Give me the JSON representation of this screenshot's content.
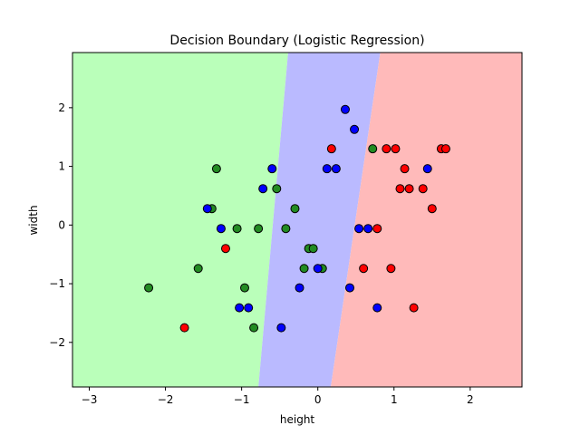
{
  "chart_data": {
    "type": "scatter",
    "title": "Decision Boundary (Logistic Regression)",
    "xlabel": "height",
    "ylabel": "width",
    "xlim": [
      -3.22,
      2.68
    ],
    "ylim": [
      -2.76,
      2.94
    ],
    "xticks": [
      -3,
      -2,
      -1,
      0,
      1,
      2
    ],
    "yticks": [
      -2,
      -1,
      0,
      1,
      2
    ],
    "grid": false,
    "legend": "none",
    "regions": [
      {
        "class": "green",
        "color": "#baffba",
        "boundary_bottom_x": -0.78,
        "boundary_top_x": -0.39
      },
      {
        "class": "blue",
        "color": "#babaff",
        "boundary_bottom_x": 0.17,
        "boundary_top_x": 0.82
      },
      {
        "class": "red",
        "color": "#ffbaba"
      }
    ],
    "point_colors": {
      "red": "#ff0000",
      "green": "#228b22",
      "blue": "#0000ff"
    },
    "points": [
      {
        "x": -2.22,
        "y": -1.07,
        "c": "green"
      },
      {
        "x": -1.57,
        "y": -0.74,
        "c": "green"
      },
      {
        "x": -1.39,
        "y": 0.28,
        "c": "green"
      },
      {
        "x": -1.33,
        "y": 0.96,
        "c": "green"
      },
      {
        "x": -1.06,
        "y": -0.06,
        "c": "green"
      },
      {
        "x": -0.96,
        "y": -1.07,
        "c": "green"
      },
      {
        "x": -0.84,
        "y": -1.75,
        "c": "green"
      },
      {
        "x": -0.78,
        "y": -0.06,
        "c": "green"
      },
      {
        "x": -0.54,
        "y": 0.62,
        "c": "green"
      },
      {
        "x": -0.42,
        "y": -0.06,
        "c": "green"
      },
      {
        "x": -0.3,
        "y": 0.28,
        "c": "green"
      },
      {
        "x": -0.18,
        "y": -0.74,
        "c": "green"
      },
      {
        "x": -0.12,
        "y": -0.4,
        "c": "green"
      },
      {
        "x": -0.06,
        "y": -0.4,
        "c": "green"
      },
      {
        "x": 0.06,
        "y": -0.74,
        "c": "green"
      },
      {
        "x": 0.72,
        "y": 1.3,
        "c": "green"
      },
      {
        "x": -1.45,
        "y": 0.28,
        "c": "blue"
      },
      {
        "x": -1.27,
        "y": -0.06,
        "c": "blue"
      },
      {
        "x": -1.03,
        "y": -1.41,
        "c": "blue"
      },
      {
        "x": -0.91,
        "y": -1.41,
        "c": "blue"
      },
      {
        "x": -0.72,
        "y": 0.62,
        "c": "blue"
      },
      {
        "x": -0.6,
        "y": 0.96,
        "c": "blue"
      },
      {
        "x": -0.48,
        "y": -1.75,
        "c": "blue"
      },
      {
        "x": -0.24,
        "y": -1.07,
        "c": "blue"
      },
      {
        "x": 0.0,
        "y": -0.74,
        "c": "blue"
      },
      {
        "x": 0.12,
        "y": 0.96,
        "c": "blue"
      },
      {
        "x": 0.24,
        "y": 0.96,
        "c": "blue"
      },
      {
        "x": 0.36,
        "y": 1.97,
        "c": "blue"
      },
      {
        "x": 0.42,
        "y": -1.07,
        "c": "blue"
      },
      {
        "x": 0.48,
        "y": 1.63,
        "c": "blue"
      },
      {
        "x": 0.54,
        "y": -0.06,
        "c": "blue"
      },
      {
        "x": 0.66,
        "y": -0.06,
        "c": "blue"
      },
      {
        "x": 0.78,
        "y": -1.41,
        "c": "blue"
      },
      {
        "x": 1.44,
        "y": 0.96,
        "c": "blue"
      },
      {
        "x": -1.75,
        "y": -1.75,
        "c": "red"
      },
      {
        "x": -1.21,
        "y": -0.4,
        "c": "red"
      },
      {
        "x": 0.18,
        "y": 1.3,
        "c": "red"
      },
      {
        "x": 0.6,
        "y": -0.74,
        "c": "red"
      },
      {
        "x": 0.78,
        "y": -0.06,
        "c": "red"
      },
      {
        "x": 0.9,
        "y": 1.3,
        "c": "red"
      },
      {
        "x": 0.96,
        "y": -0.74,
        "c": "red"
      },
      {
        "x": 1.02,
        "y": 1.3,
        "c": "red"
      },
      {
        "x": 1.08,
        "y": 0.62,
        "c": "red"
      },
      {
        "x": 1.14,
        "y": 0.96,
        "c": "red"
      },
      {
        "x": 1.2,
        "y": 0.62,
        "c": "red"
      },
      {
        "x": 1.26,
        "y": -1.41,
        "c": "red"
      },
      {
        "x": 1.38,
        "y": 0.62,
        "c": "red"
      },
      {
        "x": 1.5,
        "y": 0.28,
        "c": "red"
      },
      {
        "x": 1.62,
        "y": 1.3,
        "c": "red"
      },
      {
        "x": 1.68,
        "y": 1.3,
        "c": "red"
      }
    ]
  }
}
